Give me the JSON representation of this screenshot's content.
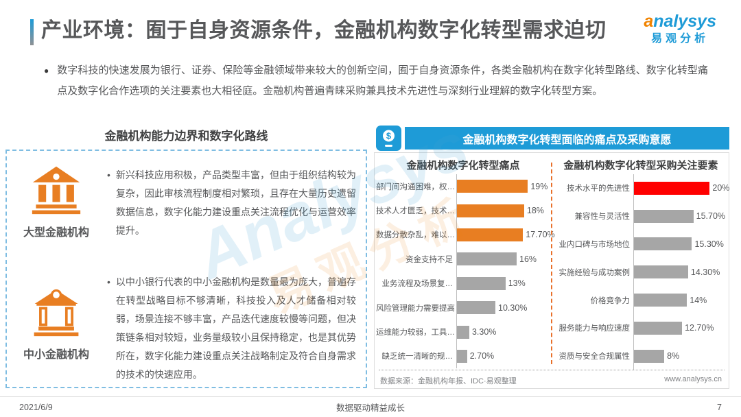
{
  "page": {
    "title": "产业环境：囿于自身资源条件，金融机构数字化转型需求迫切",
    "logo": {
      "brand_first": "a",
      "brand_rest": "nalysys",
      "brand_cn": "易观分析"
    },
    "intro_bullet": "●",
    "intro": "数字科技的快速发展为银行、证券、保险等金融领域带来较大的创新空间，囿于自身资源条件，各类金融机构在数字化转型路线、数字化转型痛点及数字化合作选项的关注要素也大相径庭。金融机构普遍青睐采购兼具技术先进性与深刻行业理解的数字化转型方案。",
    "watermark_en": "Analysys",
    "watermark_cn": "易观分析",
    "footer": {
      "date": "2021/6/9",
      "slogan": "数据驱动精益成长",
      "page_number": "7"
    }
  },
  "left_panel": {
    "title": "金融机构能力边界和数字化路线",
    "bullet_char": "•",
    "items": [
      {
        "label": "大型金融机构",
        "icon": "bank-large-icon",
        "text": "新兴科技应用积极，产品类型丰富，但由于组织结构较为复杂，因此审核流程制度相对繁琐，且存在大量历史遗留数据信息，数字化能力建设重点关注流程优化与运营效率提升。"
      },
      {
        "label": "中小金融机构",
        "icon": "bank-small-icon",
        "text": "以中小银行代表的中小金融机构是数量最为庞大，普遍存在转型战略目标不够清晰，科技投入及人才储备相对较弱，场景连接不够丰富，产品迭代速度较慢等问题，但决策链条相对较短，业务量级较小且保持稳定，也是其优势所在，数字化能力建设重点关注战略制定及符合自身需求的技术的快速应用。"
      }
    ]
  },
  "right_panel": {
    "header": "金融机构数字化转型面临的痛点及采购意愿",
    "icon": "mobile-payment-icon",
    "source": "数据来源：金融机构年报、IDC·易观整理",
    "website": "www.analysys.cn"
  },
  "colors": {
    "accent_blue": "#1E9BD7",
    "orange": "#E87E22",
    "red": "#FF0000",
    "gray_bar": "#A6A6A6",
    "dashed_box_blue": "#7FBDE2",
    "divider_orange": "#E8702A"
  },
  "chart_data": [
    {
      "type": "bar",
      "orientation": "horizontal",
      "title": "金融机构数字化转型痛点",
      "categories": [
        "部门间沟通困难，权…",
        "技术人才匮乏，技术…",
        "数据分散杂乱，难以…",
        "资金支持不足",
        "业务流程及场景复…",
        "风险管理能力需要提高",
        "运维能力较弱，工具…",
        "缺乏统一清晰的规…"
      ],
      "values": [
        19,
        18,
        17.7,
        16,
        13,
        10.3,
        3.3,
        2.7
      ],
      "value_labels": [
        "19%",
        "18%",
        "17.70%",
        "16%",
        "13%",
        "10.30%",
        "3.30%",
        "2.70%"
      ],
      "bar_colors": [
        "#E87E22",
        "#E87E22",
        "#E87E22",
        "#A6A6A6",
        "#A6A6A6",
        "#A6A6A6",
        "#A6A6A6",
        "#A6A6A6"
      ],
      "xlim": [
        0,
        25
      ],
      "grid": false,
      "legend": false
    },
    {
      "type": "bar",
      "orientation": "horizontal",
      "title": "金融机构数字化转型采购关注要素",
      "categories": [
        "技术水平的先进性",
        "兼容性与灵活性",
        "业内口碑与市场地位",
        "实施经验与成功案例",
        "价格竞争力",
        "服务能力与响应速度",
        "资质与安全合规属性"
      ],
      "values": [
        20,
        15.7,
        15.3,
        14.3,
        14,
        12.7,
        8
      ],
      "value_labels": [
        "20%",
        "15.70%",
        "15.30%",
        "14.30%",
        "14%",
        "12.70%",
        "8%"
      ],
      "bar_colors": [
        "#FF0000",
        "#A6A6A6",
        "#A6A6A6",
        "#A6A6A6",
        "#A6A6A6",
        "#A6A6A6",
        "#A6A6A6"
      ],
      "xlim": [
        0,
        25
      ],
      "grid": false,
      "legend": false
    }
  ]
}
